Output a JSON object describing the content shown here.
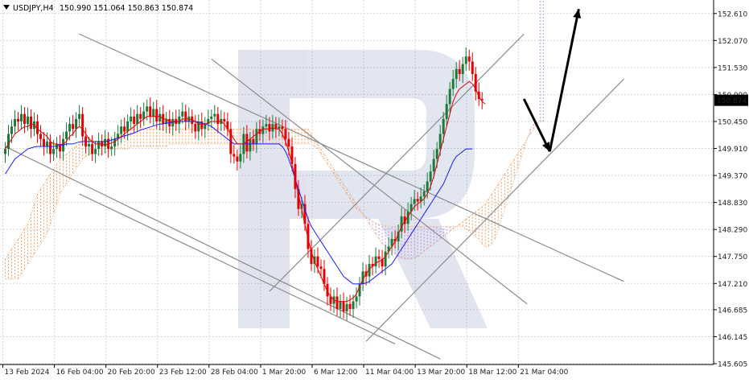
{
  "header": {
    "symbol": "USDJPY,H4",
    "ohlc": "150.990 151.064 150.863 150.874",
    "arrow_icon": "triangle-down-icon"
  },
  "price_tag": "150.874",
  "colors": {
    "bull": "#1b7a3a",
    "bear": "#e60000",
    "tenkan": "#e60000",
    "kijun": "#1a1aff",
    "cloud_bull": "#f0a060",
    "cloud_bear": "#c08fe0",
    "trendline": "#8c8c8c",
    "forecast": "#000000",
    "grid": "#d8d8d8",
    "price_tag_bg": "#000000",
    "price_tag_fg": "#ffffff"
  },
  "chart_data": {
    "type": "candlestick",
    "symbol": "USDJPY",
    "timeframe": "H4",
    "ylim": [
      145.605,
      152.88
    ],
    "y_ticks": [
      "152.610",
      "152.070",
      "151.530",
      "150.990",
      "150.450",
      "149.910",
      "149.370",
      "148.830",
      "148.290",
      "147.750",
      "147.210",
      "146.685",
      "146.145",
      "145.605"
    ],
    "x_ticks": [
      "13 Feb 2024",
      "16 Feb 04:00",
      "20 Feb 20:00",
      "23 Feb 12:00",
      "28 Feb 04:00",
      "1 Mar 20:00",
      "6 Mar 12:00",
      "11 Mar 04:00",
      "13 Mar 20:00",
      "18 Mar 12:00",
      "21 Mar 04:00"
    ],
    "x_tick_bars": [
      0,
      16,
      32,
      48,
      64,
      80,
      96,
      112,
      128,
      144,
      160
    ],
    "last_price": 150.874,
    "candles": {
      "closes": [
        149.9,
        150.2,
        150.35,
        150.5,
        150.45,
        150.6,
        150.4,
        150.55,
        150.3,
        150.45,
        150.2,
        150.1,
        149.95,
        150.05,
        149.8,
        149.9,
        150.0,
        149.85,
        150.1,
        150.25,
        150.4,
        150.3,
        150.5,
        150.6,
        150.15,
        149.95,
        150.0,
        149.8,
        149.9,
        150.05,
        149.95,
        150.1,
        149.9,
        149.95,
        150.1,
        150.2,
        150.35,
        150.25,
        150.45,
        150.55,
        150.4,
        150.6,
        150.5,
        150.65,
        150.75,
        150.55,
        150.7,
        150.45,
        150.6,
        150.4,
        150.5,
        150.35,
        150.5,
        150.4,
        150.55,
        150.65,
        150.45,
        150.55,
        150.4,
        150.25,
        150.45,
        150.3,
        150.4,
        150.5,
        150.55,
        150.6,
        150.4,
        150.5,
        150.45,
        150.3,
        149.8,
        149.75,
        149.65,
        149.8,
        150.2,
        149.85,
        150.1,
        150.0,
        150.3,
        150.2,
        150.35,
        150.4,
        150.25,
        150.4,
        150.3,
        150.35,
        150.3,
        150.1,
        149.95,
        149.6,
        149.1,
        148.7,
        148.8,
        148.4,
        147.9,
        147.6,
        147.75,
        147.55,
        147.5,
        147.2,
        146.95,
        146.8,
        146.95,
        146.7,
        146.85,
        146.65,
        146.8,
        146.7,
        146.85,
        146.95,
        147.2,
        147.45,
        147.35,
        147.6,
        147.55,
        147.75,
        147.7,
        147.55,
        147.85,
        147.95,
        148.1,
        148.05,
        148.25,
        148.55,
        148.4,
        148.65,
        148.8,
        148.9,
        148.85,
        148.95,
        149.05,
        149.25,
        149.45,
        149.7,
        149.9,
        150.2,
        150.5,
        150.8,
        151.1,
        151.3,
        151.5,
        151.4,
        151.6,
        151.75,
        151.65,
        151.4,
        151.05,
        150.9,
        150.874
      ],
      "ranges": [
        0.35,
        0.45
      ]
    },
    "indicators": {
      "tenkan_sen": [
        149.9,
        150.0,
        150.1,
        150.2,
        150.25,
        150.3,
        150.35,
        150.35,
        150.4,
        150.38,
        150.3,
        150.25,
        150.2,
        150.15,
        150.05,
        150.0,
        150.0,
        149.98,
        150.0,
        150.05,
        150.15,
        150.2,
        150.3,
        150.35,
        150.3,
        150.2,
        150.1,
        150.05,
        150.0,
        150.0,
        150.0,
        149.98,
        150.0,
        150.02,
        150.05,
        150.1,
        150.15,
        150.2,
        150.25,
        150.3,
        150.35,
        150.4,
        150.45,
        150.5,
        150.55,
        150.55,
        150.55,
        150.55,
        150.55,
        150.5,
        150.5,
        150.45,
        150.45,
        150.45,
        150.45,
        150.5,
        150.5,
        150.5,
        150.48,
        150.45,
        150.4,
        150.4,
        150.4,
        150.42,
        150.45,
        150.45,
        150.45,
        150.45,
        150.4,
        150.3,
        150.2,
        150.1,
        150.0,
        150.0,
        150.0,
        150.05,
        150.1,
        150.15,
        150.2,
        150.25,
        150.3,
        150.3,
        150.3,
        150.32,
        150.3,
        150.3,
        150.2,
        150.05,
        149.85,
        149.6,
        149.3,
        149.0,
        148.7,
        148.4,
        148.1,
        147.85,
        147.65,
        147.5,
        147.35,
        147.2,
        147.05,
        146.95,
        146.88,
        146.85,
        146.85,
        146.85,
        146.85,
        146.88,
        146.92,
        147.0,
        147.15,
        147.3,
        147.4,
        147.5,
        147.55,
        147.62,
        147.65,
        147.68,
        147.75,
        147.85,
        147.95,
        148.05,
        148.2,
        148.35,
        148.45,
        148.55,
        148.65,
        148.75,
        148.8,
        148.85,
        148.9,
        149.0,
        149.15,
        149.35,
        149.6,
        149.85,
        150.1,
        150.35,
        150.6,
        150.85,
        151.0,
        151.1,
        151.15,
        151.2,
        151.25,
        151.2,
        151.1,
        150.95,
        150.85,
        150.8
      ],
      "kijun_sen": [
        149.4,
        149.5,
        149.6,
        149.7,
        149.75,
        149.8,
        149.85,
        149.9,
        149.92,
        149.94,
        149.95,
        149.95,
        149.95,
        149.95,
        149.95,
        149.95,
        149.96,
        149.97,
        149.98,
        150.0,
        150.0,
        150.0,
        150.02,
        150.04,
        150.05,
        150.05,
        150.05,
        150.05,
        150.05,
        150.05,
        150.05,
        150.05,
        150.06,
        150.08,
        150.1,
        150.12,
        150.14,
        150.16,
        150.18,
        150.2,
        150.22,
        150.25,
        150.28,
        150.3,
        150.32,
        150.34,
        150.36,
        150.38,
        150.4,
        150.4,
        150.42,
        150.42,
        150.44,
        150.44,
        150.45,
        150.45,
        150.45,
        150.45,
        150.45,
        150.45,
        150.44,
        150.42,
        150.4,
        150.38,
        150.35,
        150.3,
        150.25,
        150.2,
        150.15,
        150.1,
        150.05,
        150.0,
        150.0,
        150.0,
        150.0,
        150.0,
        150.0,
        150.0,
        150.0,
        150.0,
        150.0,
        150.0,
        150.0,
        150.0,
        150.0,
        150.0,
        149.95,
        149.85,
        149.7,
        149.5,
        149.3,
        149.1,
        148.9,
        148.7,
        148.5,
        148.35,
        148.25,
        148.15,
        148.05,
        147.95,
        147.85,
        147.75,
        147.65,
        147.55,
        147.45,
        147.35,
        147.3,
        147.25,
        147.2,
        147.2,
        147.2,
        147.2,
        147.22,
        147.25,
        147.3,
        147.35,
        147.4,
        147.45,
        147.5,
        147.55,
        147.6,
        147.7,
        147.8,
        147.9,
        148.0,
        148.1,
        148.2,
        148.3,
        148.4,
        148.5,
        148.6,
        148.7,
        148.8,
        148.9,
        149.0,
        149.1,
        149.2,
        149.35,
        149.5,
        149.65,
        149.75,
        149.8,
        149.85,
        149.9,
        149.9,
        149.9
      ]
    },
    "cloud": {
      "start_bar": 0,
      "span_a": [
        147.7,
        147.8,
        147.9,
        148.0,
        148.1,
        148.2,
        148.3,
        148.4,
        148.6,
        148.8,
        149.0,
        149.1,
        149.2,
        149.3,
        149.4,
        149.5,
        149.6,
        149.7,
        149.75,
        149.8,
        149.85,
        149.9,
        149.95,
        150.0,
        150.05,
        150.1,
        150.1,
        150.1,
        150.05,
        150.0,
        150.0,
        150.05,
        150.1,
        150.15,
        150.2,
        150.2,
        150.2,
        150.25,
        150.3,
        150.3,
        150.3,
        150.3,
        150.3,
        150.3,
        150.3,
        150.3,
        150.3,
        150.3,
        150.3,
        150.3,
        150.3,
        150.3,
        150.3,
        150.3,
        150.3,
        150.3,
        150.3,
        150.3,
        150.3,
        150.3,
        150.3,
        150.3,
        150.3,
        150.3,
        150.3,
        150.3,
        150.3,
        150.3,
        150.3,
        150.3,
        150.3,
        150.3,
        150.3,
        150.3,
        150.3,
        150.3,
        150.3,
        150.3,
        150.3,
        150.3,
        150.3,
        150.3,
        150.3,
        150.3,
        150.3,
        150.3,
        150.3,
        150.3,
        150.3,
        150.3,
        150.3,
        150.3,
        150.3,
        150.3,
        150.3,
        150.2,
        150.1,
        150.0,
        149.9,
        149.8,
        149.7,
        149.6,
        149.5,
        149.4,
        149.3,
        149.2,
        149.1,
        149.0,
        148.9,
        148.8,
        148.7,
        148.6,
        148.5,
        148.4,
        148.3,
        148.2,
        148.1,
        148.0,
        147.95,
        147.9,
        147.85,
        147.8,
        147.75,
        147.72,
        147.7,
        147.7,
        147.7,
        147.72,
        147.75,
        147.8,
        147.85,
        147.9,
        147.95,
        148.0,
        148.05,
        148.1,
        148.15,
        148.2,
        148.25,
        148.3,
        148.35,
        148.4,
        148.45,
        148.5,
        148.55,
        148.6,
        148.65,
        148.7,
        148.75,
        148.8,
        148.9,
        149.0,
        149.1,
        149.2,
        149.3,
        149.4,
        149.5,
        149.6,
        149.7,
        149.8,
        149.9,
        150.0,
        150.1,
        150.2,
        150.3,
        150.4,
        150.45,
        150.45
      ],
      "span_b": [
        147.3,
        147.3,
        147.3,
        147.3,
        147.3,
        147.4,
        147.5,
        147.6,
        147.7,
        147.8,
        147.9,
        148.0,
        148.1,
        148.2,
        148.4,
        148.6,
        148.8,
        149.0,
        149.1,
        149.2,
        149.3,
        149.4,
        149.5,
        149.6,
        149.7,
        149.75,
        149.8,
        149.8,
        149.8,
        149.8,
        149.8,
        149.85,
        149.85,
        149.9,
        149.9,
        149.9,
        149.9,
        149.9,
        149.9,
        149.95,
        149.95,
        149.95,
        149.95,
        149.95,
        149.95,
        149.95,
        149.95,
        149.95,
        149.95,
        149.95,
        149.95,
        150.0,
        150.0,
        150.0,
        150.0,
        150.0,
        150.0,
        150.0,
        150.0,
        150.0,
        150.0,
        150.0,
        150.0,
        150.0,
        150.0,
        150.0,
        150.0,
        150.0,
        150.0,
        150.0,
        150.0,
        150.0,
        150.0,
        150.0,
        150.0,
        150.0,
        150.0,
        150.0,
        150.0,
        150.0,
        150.0,
        150.0,
        150.0,
        150.0,
        150.0,
        150.0,
        150.0,
        150.0,
        150.0,
        150.0,
        150.0,
        150.0,
        150.0,
        150.0,
        150.0,
        150.0,
        149.95,
        149.9,
        149.8,
        149.7,
        149.6,
        149.5,
        149.4,
        149.3,
        149.2,
        149.1,
        149.0,
        148.9,
        148.8,
        148.7,
        148.65,
        148.6,
        148.55,
        148.5,
        148.45,
        148.42,
        148.4,
        148.38,
        148.36,
        148.35,
        148.35,
        148.35,
        148.35,
        148.35,
        148.35,
        148.35,
        148.35,
        148.35,
        148.35,
        148.35,
        148.35,
        148.35,
        148.35,
        148.35,
        148.35,
        148.35,
        148.35,
        148.35,
        148.35,
        148.35,
        148.35,
        148.35,
        148.35,
        148.3,
        148.25,
        148.2,
        148.15,
        148.1,
        148.0,
        147.95,
        147.95,
        148.0,
        148.1,
        148.3,
        148.5,
        148.7,
        148.9,
        149.1,
        149.3,
        149.5,
        149.7,
        149.9,
        150.1,
        150.3,
        150.4,
        150.45
      ]
    },
    "trendlines": [
      {
        "from": [
          0,
          149.95
        ],
        "to": [
          135,
          145.7
        ]
      },
      {
        "from": [
          23,
          152.2
        ],
        "to": [
          192,
          147.25
        ]
      },
      {
        "from": [
          23,
          149.0
        ],
        "to": [
          121,
          146.0
        ]
      },
      {
        "from": [
          64,
          151.7
        ],
        "to": [
          162,
          146.8
        ]
      },
      {
        "from": [
          82,
          147.05
        ],
        "to": [
          161,
          152.2
        ]
      },
      {
        "from": [
          112,
          146.05
        ],
        "to": [
          192,
          151.3
        ]
      }
    ],
    "forecast": [
      {
        "from": [
          161,
          150.9
        ],
        "to": [
          169,
          149.85
        ]
      },
      {
        "from": [
          169,
          149.85
        ],
        "to": [
          178,
          152.7
        ]
      }
    ]
  }
}
